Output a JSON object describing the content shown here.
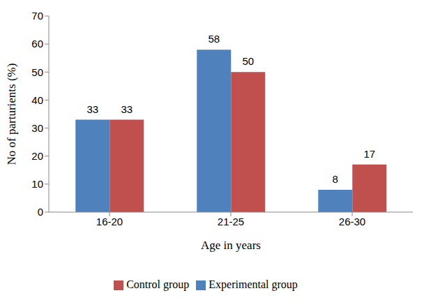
{
  "chart_data": {
    "type": "bar",
    "categories": [
      "16-20",
      "21-25",
      "26-30"
    ],
    "series": [
      {
        "name": "Experimental group",
        "color": "#4f81bd",
        "values": [
          33,
          58,
          8
        ]
      },
      {
        "name": "Control group",
        "color": "#c0504d",
        "values": [
          33,
          50,
          17
        ]
      }
    ],
    "x_label": "Age in years",
    "y_label": "No of parturients (%)",
    "ylim": [
      0,
      70
    ],
    "yticks": [
      0,
      10,
      20,
      30,
      40,
      50,
      60,
      70
    ],
    "grid": false,
    "legend": "bottom",
    "data_labels": true
  }
}
